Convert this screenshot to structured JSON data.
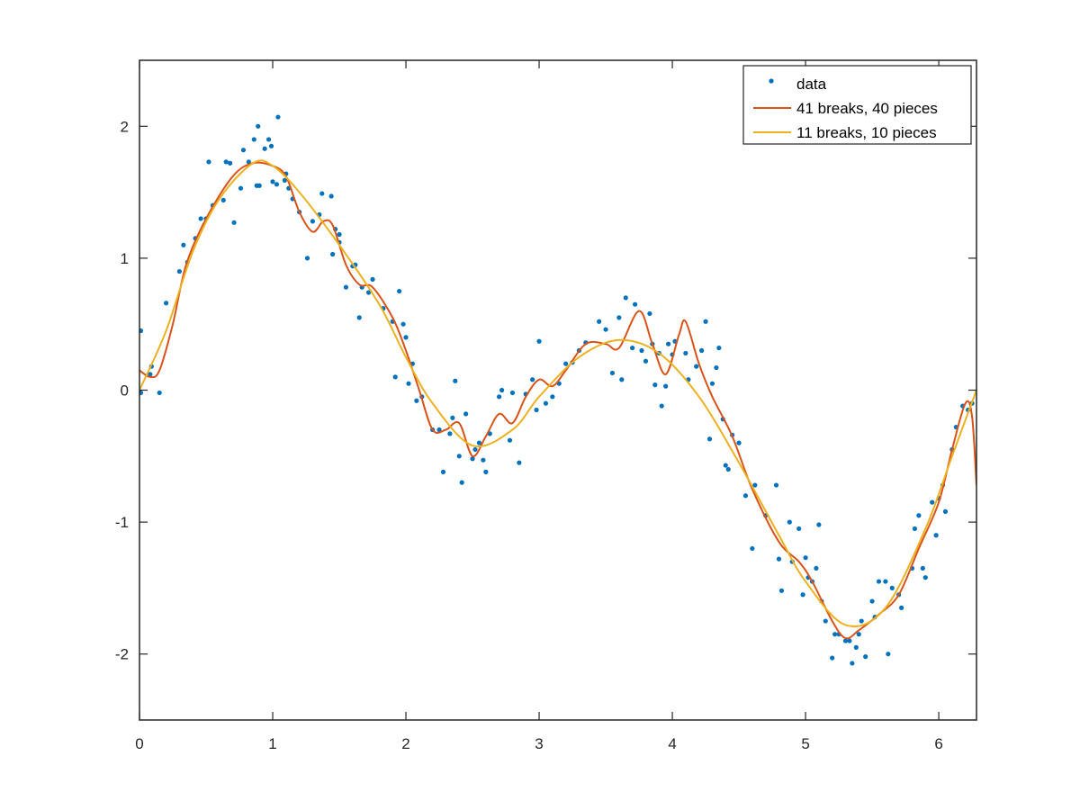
{
  "chart_data": {
    "type": "line",
    "title": "",
    "xlabel": "",
    "ylabel": "",
    "xlim": [
      0,
      6.2832
    ],
    "ylim": [
      -2.5,
      2.5
    ],
    "grid": false,
    "box": true,
    "xticks": [
      0,
      1,
      2,
      3,
      4,
      5,
      6
    ],
    "xtick_labels": [
      "0",
      "1",
      "2",
      "3",
      "4",
      "5",
      "6"
    ],
    "yticks": [
      -2,
      -1,
      0,
      1,
      2
    ],
    "ytick_labels": [
      "-2",
      "-1",
      "0",
      "1",
      "2"
    ],
    "legend": {
      "position": "northeast",
      "entries": [
        "data",
        "41 breaks, 40 pieces",
        "11 breaks, 10 pieces"
      ]
    },
    "series": [
      {
        "name": "data",
        "style": "scatter",
        "color": "#0072BD",
        "points": [
          [
            0.01,
            0.45
          ],
          [
            0.01,
            -0.02
          ],
          [
            0.08,
            0.12
          ],
          [
            0.15,
            -0.02
          ],
          [
            0.09,
            0.18
          ],
          [
            0.2,
            0.66
          ],
          [
            0.33,
            1.1
          ],
          [
            0.42,
            1.15
          ],
          [
            0.52,
            1.73
          ],
          [
            0.46,
            1.3
          ],
          [
            0.63,
            1.44
          ],
          [
            0.65,
            1.73
          ],
          [
            0.68,
            1.72
          ],
          [
            0.71,
            1.27
          ],
          [
            0.76,
            1.53
          ],
          [
            0.82,
            1.73
          ],
          [
            0.78,
            1.82
          ],
          [
            0.86,
            1.9
          ],
          [
            0.88,
            1.55
          ],
          [
            0.9,
            1.55
          ],
          [
            0.89,
            2.0
          ],
          [
            0.94,
            1.83
          ],
          [
            0.97,
            1.9
          ],
          [
            0.99,
            1.85
          ],
          [
            1.0,
            1.58
          ],
          [
            1.03,
            1.56
          ],
          [
            1.09,
            1.59
          ],
          [
            1.1,
            1.64
          ],
          [
            1.12,
            1.53
          ],
          [
            1.04,
            2.07
          ],
          [
            1.26,
            1.0
          ],
          [
            1.35,
            1.33
          ],
          [
            1.37,
            1.49
          ],
          [
            1.44,
            1.47
          ],
          [
            1.47,
            1.22
          ],
          [
            1.5,
            1.18
          ],
          [
            1.45,
            1.03
          ],
          [
            1.55,
            0.78
          ],
          [
            1.5,
            1.12
          ],
          [
            1.6,
            0.94
          ],
          [
            1.62,
            0.95
          ],
          [
            1.65,
            0.55
          ],
          [
            1.67,
            0.78
          ],
          [
            1.72,
            0.74
          ],
          [
            1.75,
            0.84
          ],
          [
            1.9,
            0.52
          ],
          [
            1.83,
            0.62
          ],
          [
            1.95,
            0.75
          ],
          [
            1.98,
            0.5
          ],
          [
            2.0,
            0.4
          ],
          [
            2.02,
            0.05
          ],
          [
            2.05,
            0.2
          ],
          [
            2.08,
            -0.08
          ],
          [
            2.12,
            -0.05
          ],
          [
            1.92,
            0.1
          ],
          [
            2.2,
            -0.3
          ],
          [
            2.25,
            -0.3
          ],
          [
            2.28,
            -0.62
          ],
          [
            2.33,
            -0.33
          ],
          [
            2.35,
            -0.21
          ],
          [
            2.37,
            0.07
          ],
          [
            2.4,
            -0.5
          ],
          [
            2.42,
            -0.7
          ],
          [
            2.45,
            -0.18
          ],
          [
            2.5,
            -0.52
          ],
          [
            2.52,
            -0.45
          ],
          [
            2.55,
            -0.4
          ],
          [
            2.58,
            -0.53
          ],
          [
            2.6,
            -0.62
          ],
          [
            2.63,
            -0.33
          ],
          [
            2.7,
            -0.05
          ],
          [
            2.72,
            -0.0
          ],
          [
            2.78,
            -0.38
          ],
          [
            2.8,
            -0.02
          ],
          [
            2.85,
            -0.55
          ],
          [
            2.9,
            -0.03
          ],
          [
            2.95,
            0.08
          ],
          [
            2.98,
            -0.15
          ],
          [
            3.0,
            0.37
          ],
          [
            3.05,
            -0.1
          ],
          [
            3.1,
            -0.05
          ],
          [
            3.15,
            0.05
          ],
          [
            3.2,
            0.2
          ],
          [
            3.25,
            0.21
          ],
          [
            3.3,
            0.3
          ],
          [
            3.35,
            0.36
          ],
          [
            3.45,
            0.52
          ],
          [
            3.5,
            0.46
          ],
          [
            3.55,
            0.13
          ],
          [
            3.6,
            0.55
          ],
          [
            3.62,
            0.08
          ],
          [
            3.65,
            0.7
          ],
          [
            3.7,
            0.32
          ],
          [
            3.72,
            0.65
          ],
          [
            3.77,
            0.3
          ],
          [
            3.8,
            0.22
          ],
          [
            3.83,
            0.58
          ],
          [
            3.85,
            0.35
          ],
          [
            3.87,
            0.04
          ],
          [
            3.9,
            0.28
          ],
          [
            3.92,
            -0.12
          ],
          [
            3.95,
            0.03
          ],
          [
            3.97,
            0.35
          ],
          [
            4.0,
            0.27
          ],
          [
            4.02,
            0.37
          ],
          [
            4.1,
            0.28
          ],
          [
            4.12,
            0.08
          ],
          [
            4.18,
            0.18
          ],
          [
            4.22,
            0.3
          ],
          [
            4.25,
            0.52
          ],
          [
            4.3,
            0.05
          ],
          [
            4.33,
            0.17
          ],
          [
            4.35,
            0.32
          ],
          [
            4.38,
            -0.22
          ],
          [
            4.4,
            -0.57
          ],
          [
            4.42,
            -0.6
          ],
          [
            4.28,
            -0.37
          ],
          [
            4.45,
            -0.34
          ],
          [
            4.5,
            -0.4
          ],
          [
            4.55,
            -0.8
          ],
          [
            4.62,
            -0.72
          ],
          [
            4.6,
            -1.2
          ],
          [
            4.7,
            -0.95
          ],
          [
            4.78,
            -0.72
          ],
          [
            4.8,
            -1.28
          ],
          [
            4.82,
            -1.52
          ],
          [
            4.88,
            -1.0
          ],
          [
            4.9,
            -1.3
          ],
          [
            4.95,
            -1.05
          ],
          [
            4.98,
            -1.55
          ],
          [
            5.0,
            -1.27
          ],
          [
            5.02,
            -1.42
          ],
          [
            5.05,
            -1.45
          ],
          [
            5.08,
            -1.35
          ],
          [
            5.1,
            -1.02
          ],
          [
            5.12,
            -1.6
          ],
          [
            5.15,
            -1.75
          ],
          [
            5.2,
            -2.03
          ],
          [
            5.22,
            -1.85
          ],
          [
            5.25,
            -1.85
          ],
          [
            5.3,
            -1.9
          ],
          [
            5.33,
            -1.9
          ],
          [
            5.35,
            -2.07
          ],
          [
            5.38,
            -1.95
          ],
          [
            5.4,
            -1.85
          ],
          [
            5.42,
            -1.75
          ],
          [
            5.45,
            -2.02
          ],
          [
            5.5,
            -1.6
          ],
          [
            5.52,
            -1.72
          ],
          [
            5.55,
            -1.45
          ],
          [
            5.6,
            -1.45
          ],
          [
            5.62,
            -2.0
          ],
          [
            5.65,
            -1.5
          ],
          [
            5.7,
            -1.55
          ],
          [
            5.72,
            -1.65
          ],
          [
            5.8,
            -1.35
          ],
          [
            5.82,
            -1.05
          ],
          [
            5.85,
            -0.95
          ],
          [
            5.88,
            -1.35
          ],
          [
            5.9,
            -1.42
          ],
          [
            5.95,
            -0.85
          ],
          [
            5.98,
            -1.1
          ],
          [
            6.0,
            -0.82
          ],
          [
            6.03,
            -0.72
          ],
          [
            6.05,
            -0.92
          ],
          [
            6.1,
            -0.45
          ],
          [
            6.13,
            -0.28
          ],
          [
            6.18,
            -0.12
          ],
          [
            6.22,
            -0.15
          ],
          [
            6.25,
            -0.1
          ],
          [
            0.5,
            1.3
          ],
          [
            0.55,
            1.4
          ],
          [
            0.3,
            0.9
          ],
          [
            0.36,
            0.97
          ],
          [
            1.15,
            1.45
          ],
          [
            1.2,
            1.35
          ],
          [
            1.3,
            1.28
          ]
        ]
      },
      {
        "name": "41 breaks, 40 pieces",
        "style": "line",
        "color": "#D95319",
        "points": [
          [
            0,
            0.15
          ],
          [
            0.08,
            0.1
          ],
          [
            0.15,
            0.15
          ],
          [
            0.25,
            0.5
          ],
          [
            0.35,
            0.95
          ],
          [
            0.5,
            1.3
          ],
          [
            0.7,
            1.62
          ],
          [
            0.85,
            1.72
          ],
          [
            1.0,
            1.7
          ],
          [
            1.1,
            1.62
          ],
          [
            1.2,
            1.35
          ],
          [
            1.3,
            1.2
          ],
          [
            1.38,
            1.28
          ],
          [
            1.45,
            1.25
          ],
          [
            1.55,
            0.95
          ],
          [
            1.65,
            0.8
          ],
          [
            1.75,
            0.78
          ],
          [
            1.9,
            0.55
          ],
          [
            2.0,
            0.3
          ],
          [
            2.1,
            0.0
          ],
          [
            2.2,
            -0.3
          ],
          [
            2.3,
            -0.3
          ],
          [
            2.4,
            -0.25
          ],
          [
            2.5,
            -0.5
          ],
          [
            2.6,
            -0.35
          ],
          [
            2.7,
            -0.18
          ],
          [
            2.8,
            -0.25
          ],
          [
            2.9,
            -0.05
          ],
          [
            3.0,
            0.08
          ],
          [
            3.1,
            0.03
          ],
          [
            3.2,
            0.15
          ],
          [
            3.35,
            0.35
          ],
          [
            3.5,
            0.35
          ],
          [
            3.6,
            0.32
          ],
          [
            3.75,
            0.6
          ],
          [
            3.85,
            0.35
          ],
          [
            3.95,
            0.12
          ],
          [
            4.05,
            0.42
          ],
          [
            4.1,
            0.52
          ],
          [
            4.2,
            0.2
          ],
          [
            4.3,
            -0.05
          ],
          [
            4.45,
            -0.35
          ],
          [
            4.6,
            -0.75
          ],
          [
            4.8,
            -1.15
          ],
          [
            4.95,
            -1.3
          ],
          [
            5.05,
            -1.45
          ],
          [
            5.2,
            -1.75
          ],
          [
            5.3,
            -1.88
          ],
          [
            5.4,
            -1.82
          ],
          [
            5.55,
            -1.7
          ],
          [
            5.7,
            -1.55
          ],
          [
            5.85,
            -1.2
          ],
          [
            6.0,
            -0.85
          ],
          [
            6.1,
            -0.45
          ],
          [
            6.2,
            -0.1
          ],
          [
            6.25,
            -0.2
          ],
          [
            6.2832,
            -0.72
          ]
        ]
      },
      {
        "name": "11 breaks, 10 pieces",
        "style": "line",
        "color": "#EDB120",
        "points": [
          [
            0,
            0.0
          ],
          [
            0.2,
            0.45
          ],
          [
            0.4,
            1.05
          ],
          [
            0.6,
            1.45
          ],
          [
            0.85,
            1.72
          ],
          [
            1.0,
            1.7
          ],
          [
            1.2,
            1.5
          ],
          [
            1.5,
            1.1
          ],
          [
            1.8,
            0.65
          ],
          [
            2.0,
            0.25
          ],
          [
            2.2,
            -0.1
          ],
          [
            2.5,
            -0.42
          ],
          [
            2.8,
            -0.3
          ],
          [
            3.0,
            -0.05
          ],
          [
            3.3,
            0.25
          ],
          [
            3.6,
            0.38
          ],
          [
            3.9,
            0.28
          ],
          [
            4.2,
            -0.05
          ],
          [
            4.5,
            -0.55
          ],
          [
            4.8,
            -1.1
          ],
          [
            5.0,
            -1.45
          ],
          [
            5.3,
            -1.78
          ],
          [
            5.6,
            -1.65
          ],
          [
            5.9,
            -1.05
          ],
          [
            6.1,
            -0.5
          ],
          [
            6.2832,
            0.0
          ]
        ]
      }
    ]
  }
}
